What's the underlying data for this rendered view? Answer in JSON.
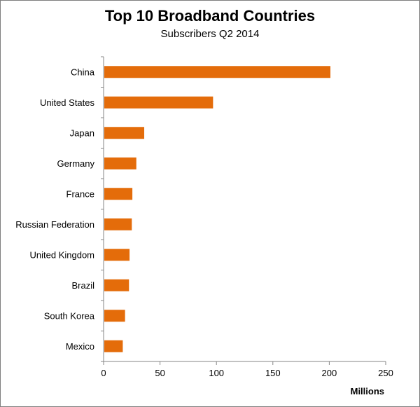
{
  "chart_data": {
    "type": "bar",
    "orientation": "horizontal",
    "title": "Top 10 Broadband Countries",
    "subtitle": "Subscribers Q2 2014",
    "xlabel": "Millions",
    "ylabel": "",
    "xlim": [
      0,
      250
    ],
    "xticks": [
      "0",
      "50",
      "100",
      "150",
      "200",
      "250"
    ],
    "grid": false,
    "legend": "none",
    "bar_color": "#E46C0A",
    "categories": [
      "China",
      "United States",
      "Japan",
      "Germany",
      "France",
      "Russian Federation",
      "United Kingdom",
      "Brazil",
      "South Korea",
      "Mexico"
    ],
    "values": [
      201,
      97,
      36,
      29,
      25.5,
      25,
      23,
      22.5,
      19,
      17
    ]
  }
}
